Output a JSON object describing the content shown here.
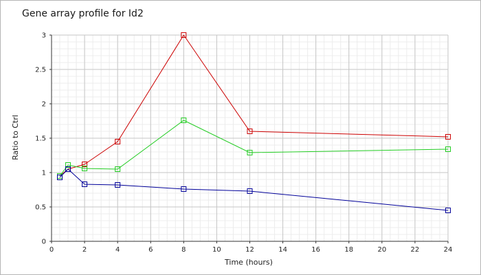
{
  "chart_data": {
    "type": "line",
    "title": "Gene array profile for Id2",
    "xlabel": "Time (hours)",
    "ylabel": "Ratio to Ctrl",
    "xlim": [
      0,
      24
    ],
    "ylim": [
      0,
      3
    ],
    "xticks": [
      0,
      2,
      4,
      6,
      8,
      10,
      12,
      14,
      16,
      18,
      20,
      22,
      24
    ],
    "xtick_labels": [
      "0",
      "2",
      "4",
      "6",
      "8",
      "10",
      "12",
      "14",
      "16",
      "18",
      "20",
      "22",
      "24"
    ],
    "yticks": [
      0,
      0.5,
      1,
      1.5,
      2,
      2.5,
      3
    ],
    "ytick_labels": [
      "0",
      "0.5",
      "1",
      "1.5",
      "2",
      "2.5",
      "3"
    ],
    "grid": true,
    "minor_grid": true,
    "legend": "none",
    "marker": "square",
    "series": [
      {
        "color": "#cc0000",
        "x": [
          0.5,
          1,
          2,
          4,
          8,
          12,
          24
        ],
        "y": [
          0.95,
          1.05,
          1.12,
          1.45,
          3.0,
          1.6,
          1.52
        ]
      },
      {
        "color": "#22cc22",
        "x": [
          0.5,
          1,
          2,
          4,
          8,
          12,
          24
        ],
        "y": [
          0.95,
          1.11,
          1.06,
          1.05,
          1.76,
          1.29,
          1.34
        ]
      },
      {
        "color": "#000099",
        "x": [
          0.5,
          1,
          2,
          4,
          8,
          12,
          24
        ],
        "y": [
          0.93,
          1.05,
          0.83,
          0.82,
          0.76,
          0.73,
          0.45
        ]
      }
    ]
  }
}
